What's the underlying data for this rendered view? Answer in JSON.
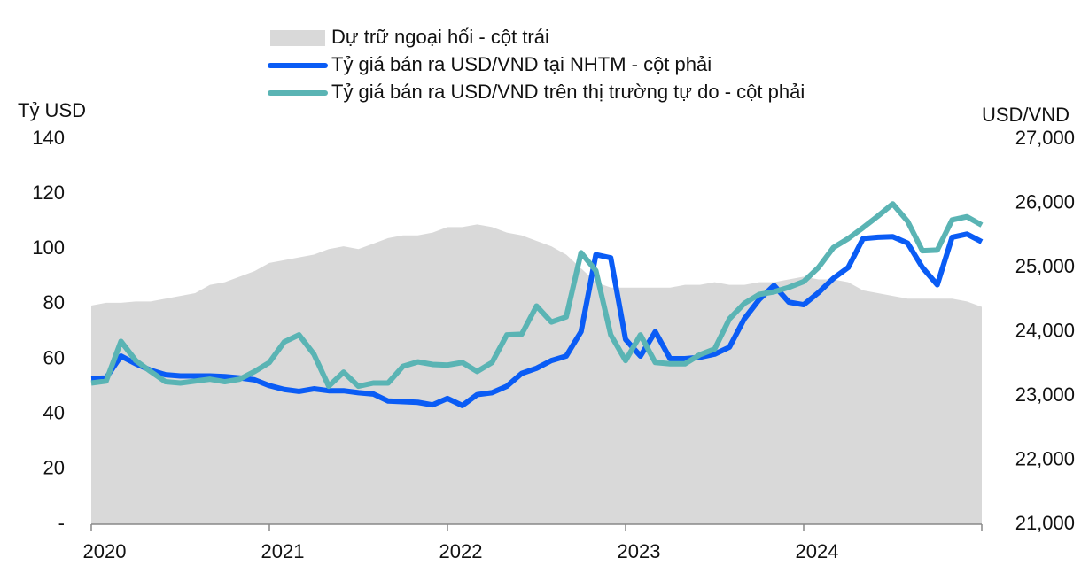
{
  "chart_data": {
    "type": "line",
    "y_label": "Tỷ USD",
    "y2_label": "USD/VND",
    "categories": [
      "2020",
      null,
      null,
      null,
      null,
      null,
      null,
      null,
      null,
      null,
      null,
      null,
      "2021",
      null,
      null,
      null,
      null,
      null,
      null,
      null,
      null,
      null,
      null,
      null,
      "2022",
      null,
      null,
      null,
      null,
      null,
      null,
      null,
      null,
      null,
      null,
      null,
      "2023",
      null,
      null,
      null,
      null,
      null,
      null,
      null,
      null,
      null,
      null,
      null,
      "2024",
      null,
      null,
      null,
      null,
      null,
      null,
      null,
      null,
      null,
      null,
      null,
      null
    ],
    "ylim": [
      0,
      140
    ],
    "yticks": [
      {
        "value": 0,
        "label": "-"
      },
      20,
      40,
      60,
      80,
      100,
      120,
      140
    ],
    "y2lim": [
      21000,
      27000
    ],
    "y2ticks": [
      {
        "value": 21000,
        "label": "21,000"
      },
      {
        "value": 22000,
        "label": "22,000"
      },
      {
        "value": 23000,
        "label": "23,000"
      },
      {
        "value": 24000,
        "label": "24,000"
      },
      {
        "value": 25000,
        "label": "25,000"
      },
      {
        "value": 26000,
        "label": "26,000"
      },
      {
        "value": 27000,
        "label": "27,000"
      }
    ],
    "series": [
      {
        "name": "Dự trữ ngoại hối - cột trái",
        "type": "area",
        "color": "#d9d9d9",
        "values": [
          79.5,
          80.5,
          80.5,
          81,
          81,
          82,
          83,
          84,
          87,
          88,
          90,
          92,
          95,
          96,
          97,
          98,
          100,
          101,
          100,
          102,
          104,
          105,
          105,
          106,
          108,
          108,
          109,
          108,
          106,
          105,
          103,
          101,
          98,
          93,
          88,
          86,
          86,
          86,
          86,
          86,
          87,
          87,
          88,
          87,
          87,
          88,
          88,
          89,
          90,
          89,
          89,
          88,
          85,
          84,
          83,
          82,
          82,
          82,
          82,
          81,
          79
        ]
      },
      {
        "name": "Tỷ giá bán ra USD/VND tại NHTM - cột phải",
        "type": "line",
        "axis": "y2",
        "color": "#0a5cf5",
        "values": [
          23270,
          23280,
          23620,
          23500,
          23400,
          23330,
          23310,
          23310,
          23310,
          23300,
          23280,
          23250,
          23160,
          23100,
          23070,
          23110,
          23080,
          23080,
          23050,
          23030,
          22920,
          22910,
          22900,
          22860,
          22960,
          22850,
          23020,
          23050,
          23150,
          23350,
          23430,
          23550,
          23620,
          24000,
          25200,
          25150,
          23880,
          23620,
          24000,
          23580,
          23580,
          23600,
          23650,
          23760,
          24200,
          24500,
          24720,
          24460,
          24420,
          24610,
          24830,
          25000,
          25450,
          25470,
          25480,
          25380,
          25000,
          24730,
          25470,
          25520,
          25400
        ]
      },
      {
        "name": "Tỷ giá bán ra USD/VND trên thị trường tự do - cột phải",
        "type": "line",
        "axis": "y2",
        "color": "#5ab4b4",
        "values": [
          23200,
          23230,
          23850,
          23550,
          23380,
          23220,
          23200,
          23230,
          23260,
          23220,
          23260,
          23380,
          23520,
          23840,
          23950,
          23650,
          23150,
          23370,
          23150,
          23200,
          23200,
          23460,
          23530,
          23490,
          23480,
          23520,
          23380,
          23520,
          23950,
          23960,
          24400,
          24150,
          24230,
          25230,
          24950,
          23950,
          23550,
          23950,
          23520,
          23500,
          23500,
          23640,
          23730,
          24200,
          24440,
          24580,
          24620,
          24690,
          24780,
          25000,
          25310,
          25450,
          25620,
          25800,
          25990,
          25720,
          25260,
          25270,
          25740,
          25790,
          25660
        ]
      }
    ]
  }
}
